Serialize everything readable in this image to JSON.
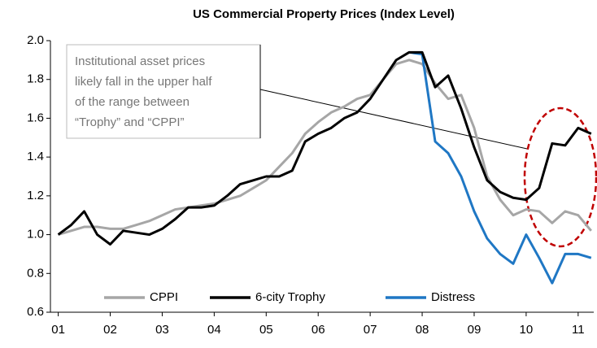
{
  "chart_data": {
    "type": "line",
    "title": "US Commercial Property Prices (Index Level)",
    "annotation": [
      "Institutional asset prices",
      "likely fall in the upper half",
      "of the range between",
      "“Trophy” and “CPPI”"
    ],
    "x": [
      1,
      1.25,
      1.5,
      1.75,
      2,
      2.25,
      2.5,
      2.75,
      3,
      3.25,
      3.5,
      3.75,
      4,
      4.25,
      4.5,
      4.75,
      5,
      5.25,
      5.5,
      5.75,
      6,
      6.25,
      6.5,
      6.75,
      7,
      7.25,
      7.5,
      7.75,
      8,
      8.25,
      8.5,
      8.75,
      9,
      9.25,
      9.5,
      9.75,
      10,
      10.25,
      10.5,
      10.75,
      11,
      11.25
    ],
    "series": [
      {
        "name": "CPPI",
        "color": "#a6a6a6",
        "values": [
          1.0,
          1.02,
          1.04,
          1.04,
          1.03,
          1.03,
          1.05,
          1.07,
          1.1,
          1.13,
          1.14,
          1.15,
          1.16,
          1.18,
          1.2,
          1.24,
          1.28,
          1.35,
          1.42,
          1.52,
          1.58,
          1.63,
          1.66,
          1.7,
          1.72,
          1.8,
          1.88,
          1.9,
          1.88,
          1.78,
          1.7,
          1.72,
          1.55,
          1.3,
          1.18,
          1.1,
          1.13,
          1.12,
          1.06,
          1.12,
          1.1,
          1.02
        ]
      },
      {
        "name": "Distress",
        "color": "#1f77c4",
        "values": [
          null,
          null,
          null,
          null,
          null,
          null,
          null,
          null,
          null,
          null,
          null,
          null,
          null,
          null,
          null,
          null,
          null,
          null,
          null,
          null,
          null,
          null,
          null,
          null,
          null,
          null,
          null,
          1.94,
          1.93,
          1.48,
          1.42,
          1.3,
          1.12,
          0.98,
          0.9,
          0.85,
          1.0,
          0.88,
          0.75,
          0.9,
          0.9,
          0.88
        ]
      },
      {
        "name": "6-city Trophy",
        "color": "#000000",
        "values": [
          1.0,
          1.05,
          1.12,
          1.0,
          0.95,
          1.02,
          1.01,
          1.0,
          1.03,
          1.08,
          1.14,
          1.14,
          1.15,
          1.2,
          1.26,
          1.28,
          1.3,
          1.3,
          1.33,
          1.48,
          1.52,
          1.55,
          1.6,
          1.63,
          1.7,
          1.8,
          1.9,
          1.94,
          1.94,
          1.76,
          1.82,
          1.65,
          1.45,
          1.28,
          1.22,
          1.19,
          1.18,
          1.24,
          1.47,
          1.46,
          1.55,
          1.52
        ]
      }
    ],
    "legend_order": [
      0,
      2,
      1
    ],
    "xlim": [
      0.85,
      11.3
    ],
    "xticks": [
      {
        "value": 1,
        "label": "01"
      },
      {
        "value": 2,
        "label": "02"
      },
      {
        "value": 3,
        "label": "03"
      },
      {
        "value": 4,
        "label": "04"
      },
      {
        "value": 5,
        "label": "05"
      },
      {
        "value": 6,
        "label": "06"
      },
      {
        "value": 7,
        "label": "07"
      },
      {
        "value": 8,
        "label": "08"
      },
      {
        "value": 9,
        "label": "09"
      },
      {
        "value": 10,
        "label": "10"
      },
      {
        "value": 11,
        "label": "11"
      }
    ],
    "ylim": [
      0.6,
      2.0
    ],
    "yticks": [
      {
        "value": 0.6,
        "label": "0.6"
      },
      {
        "value": 0.8,
        "label": "0.8"
      },
      {
        "value": 1.0,
        "label": "1.0"
      },
      {
        "value": 1.2,
        "label": "1.2"
      },
      {
        "value": 1.4,
        "label": "1.4"
      },
      {
        "value": 1.6,
        "label": "1.6"
      },
      {
        "value": 1.8,
        "label": "1.8"
      },
      {
        "value": 2.0,
        "label": "2.0"
      }
    ],
    "grid": false
  }
}
